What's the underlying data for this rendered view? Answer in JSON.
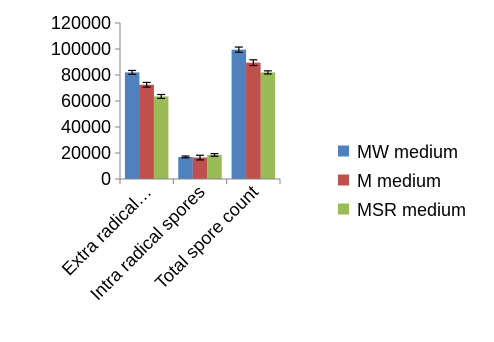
{
  "chart_data": {
    "type": "bar",
    "title": "",
    "xlabel": "",
    "ylabel": "",
    "ylim": [
      0,
      120000
    ],
    "yticks": [
      0,
      20000,
      40000,
      60000,
      80000,
      100000,
      120000
    ],
    "yticks_labels": [
      "0",
      "20000",
      "40000",
      "60000",
      "80000",
      "100000",
      "120000"
    ],
    "grid": false,
    "legend_position": "right",
    "error_bars": true,
    "categories": [
      "Extra radical…",
      "Intra radical spores",
      "Total spore count"
    ],
    "series": [
      {
        "name": "MW medium",
        "color": "#4f81bd",
        "values": [
          82000,
          17000,
          99500
        ],
        "errors": [
          1500,
          700,
          2000
        ]
      },
      {
        "name": "M medium",
        "color": "#c0504d",
        "values": [
          72500,
          16500,
          89500
        ],
        "errors": [
          1800,
          1800,
          2200
        ]
      },
      {
        "name": "MSR medium",
        "color": "#9bbb59",
        "values": [
          63500,
          18500,
          82000
        ],
        "errors": [
          1500,
          1000,
          1200
        ]
      }
    ]
  }
}
